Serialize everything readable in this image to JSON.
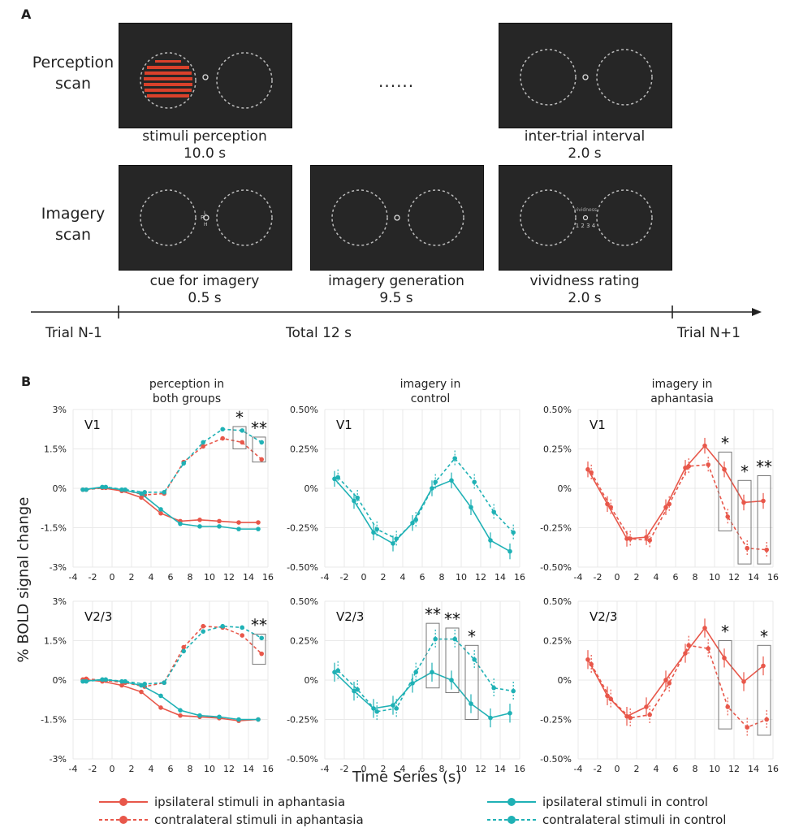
{
  "panel_a": {
    "letter": "A",
    "perception_label": [
      "Perception",
      "scan"
    ],
    "imagery_label": [
      "Imagery",
      "scan"
    ],
    "ellipsis": "......",
    "captions": {
      "stimuli_perception": [
        "stimuli perception",
        "10.0 s"
      ],
      "inter_trial": [
        "inter-trial interval",
        "2.0 s"
      ],
      "cue": [
        "cue for imagery",
        "0.5 s"
      ],
      "generation": [
        "imagery generation",
        "9.5 s"
      ],
      "vividness": [
        "vividness rating",
        "2.0 s"
      ]
    },
    "screen_text": {
      "cue_letters": [
        "R",
        "L",
        "H"
      ],
      "vividness_word": "vividness",
      "vividness_scale": "1 2 3 4"
    },
    "timeline": {
      "left": "Trial N-1",
      "middle": "Total 12 s",
      "right": "Trial N+1"
    },
    "colors": {
      "screen": "#262626",
      "stimulus": "#d9412b"
    }
  },
  "panel_b": {
    "letter": "B",
    "y_axis_title": "% BOLD signal change",
    "x_axis_title": "Time Series (s)",
    "column_titles": [
      [
        "perception in",
        "both groups"
      ],
      [
        "imagery in",
        "control"
      ],
      [
        "imagery in",
        "aphantasia"
      ]
    ],
    "colors": {
      "aphantasia": "#e8574a",
      "control": "#1fb1b5"
    },
    "legend": [
      {
        "label": "ipsilateral stimuli in aphantasia",
        "color": "#e8574a",
        "dashed": false
      },
      {
        "label": "contralateral stimuli in aphantasia",
        "color": "#e8574a",
        "dashed": true
      },
      {
        "label": "ipsilateral stimuli in control",
        "color": "#1fb1b5",
        "dashed": false
      },
      {
        "label": "contralateral stimuli in control",
        "color": "#1fb1b5",
        "dashed": true
      }
    ]
  },
  "chart_data": [
    {
      "type": "line",
      "roi": "V1",
      "title": "perception in both groups",
      "xlabel": "Time Series (s)",
      "ylabel": "% BOLD signal change",
      "xlim": [
        -4,
        16
      ],
      "ylim": [
        -3,
        3
      ],
      "x_ticks": [
        -4,
        -2,
        0,
        2,
        4,
        6,
        8,
        10,
        12,
        14,
        16
      ],
      "y_ticks": [
        "3%",
        "1.5%",
        "0%",
        "-1.5%",
        "-3%"
      ],
      "y_tick_values": [
        3,
        1.5,
        0,
        -1.5,
        -3
      ],
      "x": [
        -3,
        -1,
        1,
        3,
        5,
        7,
        9,
        11,
        13,
        15
      ],
      "series": [
        {
          "name": "ipsilateral stimuli in aphantasia",
          "values": [
            -0.05,
            0.02,
            -0.1,
            -0.35,
            -0.95,
            -1.25,
            -1.2,
            -1.25,
            -1.3,
            -1.3
          ]
        },
        {
          "name": "contralateral stimuli in aphantasia",
          "values": [
            -0.05,
            0.02,
            -0.08,
            -0.25,
            -0.2,
            1.0,
            1.6,
            1.9,
            1.75,
            1.1
          ]
        },
        {
          "name": "ipsilateral stimuli in control",
          "values": [
            -0.05,
            0.05,
            -0.05,
            -0.2,
            -0.8,
            -1.35,
            -1.45,
            -1.45,
            -1.55,
            -1.55
          ]
        },
        {
          "name": "contralateral stimuli in control",
          "values": [
            -0.05,
            0.05,
            -0.05,
            -0.15,
            -0.15,
            0.95,
            1.75,
            2.25,
            2.2,
            1.75
          ]
        }
      ],
      "significance": [
        {
          "x": 13,
          "label": "*"
        },
        {
          "x": 15,
          "label": "**"
        }
      ],
      "sig_boxes": [
        {
          "x": 13,
          "y_range": [
            1.5,
            2.35
          ]
        },
        {
          "x": 15,
          "y_range": [
            1.0,
            1.95
          ]
        }
      ]
    },
    {
      "type": "line",
      "roi": "V1",
      "title": "imagery in control",
      "xlim": [
        -4,
        16
      ],
      "ylim": [
        -0.5,
        0.5
      ],
      "x_ticks": [
        -4,
        -2,
        0,
        2,
        4,
        6,
        8,
        10,
        12,
        14,
        16
      ],
      "y_ticks": [
        "0.50%",
        "0.25%",
        "0%",
        "-0.25%",
        "-0.50%"
      ],
      "y_tick_values": [
        0.5,
        0.25,
        0,
        -0.25,
        -0.5
      ],
      "x": [
        -3,
        -1,
        1,
        3,
        5,
        7,
        9,
        11,
        13,
        15
      ],
      "series": [
        {
          "name": "ipsilateral stimuli in control",
          "values": [
            0.06,
            -0.08,
            -0.28,
            -0.35,
            -0.22,
            0.0,
            0.05,
            -0.12,
            -0.33,
            -0.4
          ]
        },
        {
          "name": "contralateral stimuli in control",
          "values": [
            0.07,
            -0.06,
            -0.26,
            -0.32,
            -0.2,
            0.04,
            0.19,
            0.04,
            -0.15,
            -0.28
          ]
        }
      ],
      "error_bar_halfwidth": 0.05,
      "significance": []
    },
    {
      "type": "line",
      "roi": "V1",
      "title": "imagery in aphantasia",
      "xlim": [
        -4,
        16
      ],
      "ylim": [
        -0.5,
        0.5
      ],
      "x_ticks": [
        -4,
        -2,
        0,
        2,
        4,
        6,
        8,
        10,
        12,
        14,
        16
      ],
      "y_ticks": [
        "0.50%",
        "0.25%",
        "0%",
        "-0.25%",
        "-0.50%"
      ],
      "y_tick_values": [
        0.5,
        0.25,
        0,
        -0.25,
        -0.5
      ],
      "x": [
        -3,
        -1,
        1,
        3,
        5,
        7,
        9,
        11,
        13,
        15
      ],
      "series": [
        {
          "name": "ipsilateral stimuli in aphantasia",
          "values": [
            0.12,
            -0.1,
            -0.32,
            -0.31,
            -0.12,
            0.13,
            0.27,
            0.12,
            -0.09,
            -0.08
          ]
        },
        {
          "name": "contralateral stimuli in aphantasia",
          "values": [
            0.1,
            -0.12,
            -0.32,
            -0.33,
            -0.1,
            0.14,
            0.15,
            -0.18,
            -0.38,
            -0.39
          ]
        }
      ],
      "error_bar_halfwidth": 0.05,
      "significance": [
        {
          "x": 11,
          "label": "*"
        },
        {
          "x": 13,
          "label": "*"
        },
        {
          "x": 15,
          "label": "**"
        }
      ],
      "sig_boxes": [
        {
          "x": 11,
          "y_range": [
            -0.27,
            0.23
          ]
        },
        {
          "x": 13,
          "y_range": [
            -0.48,
            0.05
          ]
        },
        {
          "x": 15,
          "y_range": [
            -0.48,
            0.08
          ]
        }
      ]
    },
    {
      "type": "line",
      "roi": "V2/3",
      "title": "perception in both groups",
      "xlim": [
        -4,
        16
      ],
      "ylim": [
        -3,
        3
      ],
      "x_ticks": [
        -4,
        -2,
        0,
        2,
        4,
        6,
        8,
        10,
        12,
        14,
        16
      ],
      "y_ticks": [
        "3%",
        "1.5%",
        "0%",
        "-1.5%",
        "-3%"
      ],
      "y_tick_values": [
        3,
        1.5,
        0,
        -1.5,
        -3
      ],
      "x": [
        -3,
        -1,
        1,
        3,
        5,
        7,
        9,
        11,
        13,
        15
      ],
      "series": [
        {
          "name": "ipsilateral stimuli in aphantasia",
          "values": [
            0.02,
            -0.05,
            -0.2,
            -0.45,
            -1.05,
            -1.35,
            -1.4,
            -1.45,
            -1.55,
            -1.5
          ]
        },
        {
          "name": "contralateral stimuli in aphantasia",
          "values": [
            0.05,
            -0.02,
            -0.1,
            -0.25,
            -0.1,
            1.25,
            2.05,
            2.0,
            1.7,
            1.0
          ]
        },
        {
          "name": "ipsilateral stimuli in control",
          "values": [
            -0.05,
            0.02,
            -0.05,
            -0.2,
            -0.6,
            -1.15,
            -1.35,
            -1.4,
            -1.5,
            -1.5
          ]
        },
        {
          "name": "contralateral stimuli in control",
          "values": [
            -0.05,
            0.02,
            -0.05,
            -0.15,
            -0.1,
            1.1,
            1.85,
            2.05,
            2.0,
            1.6
          ]
        }
      ],
      "significance": [
        {
          "x": 15,
          "label": "**"
        }
      ],
      "sig_boxes": [
        {
          "x": 15,
          "y_range": [
            0.6,
            1.75
          ]
        }
      ]
    },
    {
      "type": "line",
      "roi": "V2/3",
      "title": "imagery in control",
      "xlim": [
        -4,
        16
      ],
      "ylim": [
        -0.5,
        0.5
      ],
      "x_ticks": [
        -4,
        -2,
        0,
        2,
        4,
        6,
        8,
        10,
        12,
        14,
        16
      ],
      "y_ticks": [
        "0.50%",
        "0.25%",
        "0%",
        "-0.25%",
        "-0.50%"
      ],
      "y_tick_values": [
        0.5,
        0.25,
        0,
        -0.25,
        -0.5
      ],
      "x": [
        -3,
        -1,
        1,
        3,
        5,
        7,
        9,
        11,
        13,
        15
      ],
      "series": [
        {
          "name": "ipsilateral stimuli in control",
          "values": [
            0.05,
            -0.07,
            -0.18,
            -0.16,
            -0.02,
            0.05,
            0.0,
            -0.15,
            -0.24,
            -0.21
          ]
        },
        {
          "name": "contralateral stimuli in control",
          "values": [
            0.06,
            -0.06,
            -0.2,
            -0.18,
            0.05,
            0.26,
            0.26,
            0.13,
            -0.05,
            -0.07
          ]
        }
      ],
      "error_bar_halfwidth": 0.06,
      "significance": [
        {
          "x": 7,
          "label": "**"
        },
        {
          "x": 9,
          "label": "**"
        },
        {
          "x": 11,
          "label": "*"
        }
      ],
      "sig_boxes": [
        {
          "x": 7,
          "y_range": [
            -0.05,
            0.36
          ]
        },
        {
          "x": 9,
          "y_range": [
            -0.08,
            0.33
          ]
        },
        {
          "x": 11,
          "y_range": [
            -0.25,
            0.22
          ]
        }
      ]
    },
    {
      "type": "line",
      "roi": "V2/3",
      "title": "imagery in aphantasia",
      "xlim": [
        -4,
        16
      ],
      "ylim": [
        -0.5,
        0.5
      ],
      "x_ticks": [
        -4,
        -2,
        0,
        2,
        4,
        6,
        8,
        10,
        12,
        14,
        16
      ],
      "y_ticks": [
        "0.50%",
        "0.25%",
        "0%",
        "-0.25%",
        "-0.50%"
      ],
      "y_tick_values": [
        0.5,
        0.25,
        0,
        -0.25,
        -0.5
      ],
      "x": [
        -3,
        -1,
        1,
        3,
        5,
        7,
        9,
        11,
        13,
        15
      ],
      "series": [
        {
          "name": "ipsilateral stimuli in aphantasia",
          "values": [
            0.13,
            -0.1,
            -0.23,
            -0.17,
            0.0,
            0.17,
            0.33,
            0.14,
            -0.01,
            0.09
          ]
        },
        {
          "name": "contralateral stimuli in aphantasia",
          "values": [
            0.1,
            -0.12,
            -0.24,
            -0.22,
            -0.02,
            0.22,
            0.2,
            -0.17,
            -0.3,
            -0.25
          ]
        }
      ],
      "error_bar_halfwidth": 0.06,
      "significance": [
        {
          "x": 11,
          "label": "*"
        },
        {
          "x": 15,
          "label": "*"
        }
      ],
      "sig_boxes": [
        {
          "x": 11,
          "y_range": [
            -0.31,
            0.25
          ]
        },
        {
          "x": 15,
          "y_range": [
            -0.35,
            0.22
          ]
        }
      ]
    }
  ]
}
